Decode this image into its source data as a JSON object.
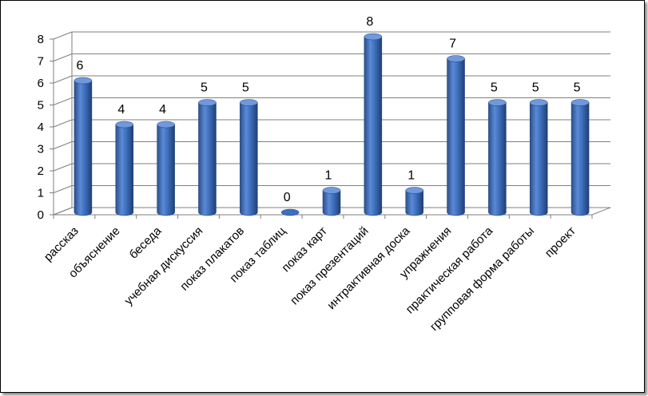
{
  "chart_data": {
    "type": "bar",
    "style": "3d-cylinder",
    "categories": [
      "рассказ",
      "объяснение",
      "беседа",
      "учебная дискуссия",
      "показ плакатов",
      "показ таблиц",
      "показ карт",
      "показ презентаций",
      "интрактивная доска",
      "упражнения",
      "практическая работа",
      "групповая форма работы",
      "проект"
    ],
    "values": [
      6,
      4,
      4,
      5,
      5,
      0,
      1,
      8,
      1,
      7,
      5,
      5,
      5
    ],
    "title": "",
    "xlabel": "",
    "ylabel": "",
    "ylim": [
      0,
      8
    ],
    "yticks": [
      "0",
      "1",
      "2",
      "3",
      "4",
      "5",
      "6",
      "7",
      "8"
    ],
    "grid": true,
    "legend": "none",
    "bar_color": "#3e6fbd"
  }
}
